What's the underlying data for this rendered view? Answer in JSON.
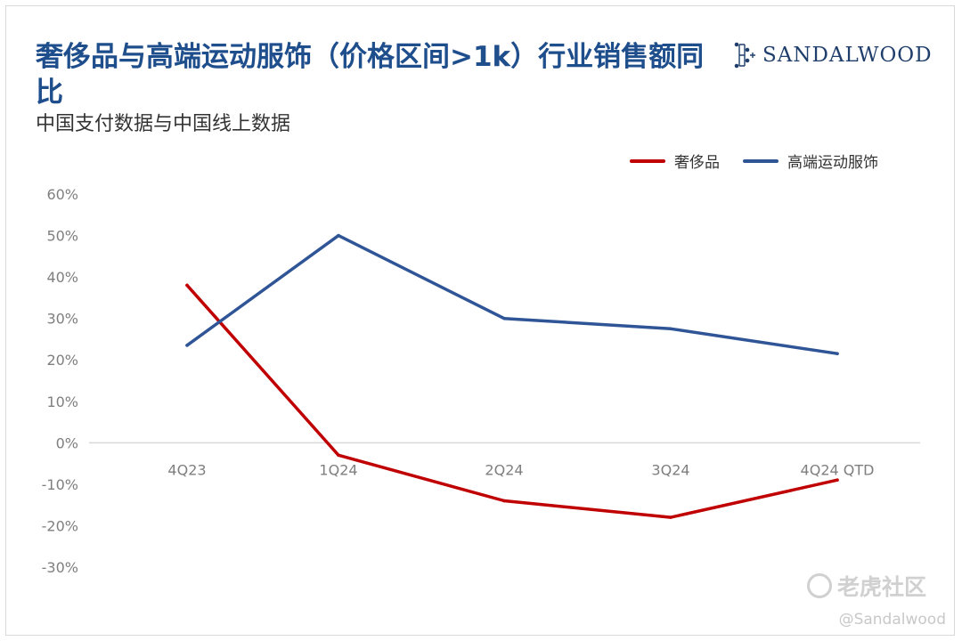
{
  "title": "奢侈品与高端运动服饰（价格区间>1k）行业销售额同比",
  "subtitle": "中国支付数据与中国线上数据",
  "brand": "SANDALWOOD",
  "watermark": {
    "platform": "老虎社区",
    "handle": "@Sandalwood"
  },
  "colors": {
    "title": "#1f4e8c",
    "luxury": "#c00000",
    "sport": "#2f5597",
    "axis": "#7f7f7f",
    "grid": "#d9d9d9"
  },
  "chart_data": {
    "type": "line",
    "categories": [
      "4Q23",
      "1Q24",
      "2Q24",
      "3Q24",
      "4Q24 QTD"
    ],
    "series": [
      {
        "name": "奢侈品",
        "color": "#c00000",
        "values": [
          38,
          -3,
          -14,
          -18,
          -9
        ]
      },
      {
        "name": "高端运动服饰",
        "color": "#2f5597",
        "values": [
          23.5,
          50,
          30,
          27.5,
          21.5
        ]
      }
    ],
    "ylim": [
      -30,
      60
    ],
    "yticks": [
      "60%",
      "50%",
      "40%",
      "30%",
      "20%",
      "10%",
      "0%",
      "-10%",
      "-20%",
      "-30%"
    ],
    "ytick_values": [
      60,
      50,
      40,
      30,
      20,
      10,
      0,
      -10,
      -20,
      -30
    ],
    "legend_position": "top-right",
    "zero_line": true,
    "grid": false
  }
}
